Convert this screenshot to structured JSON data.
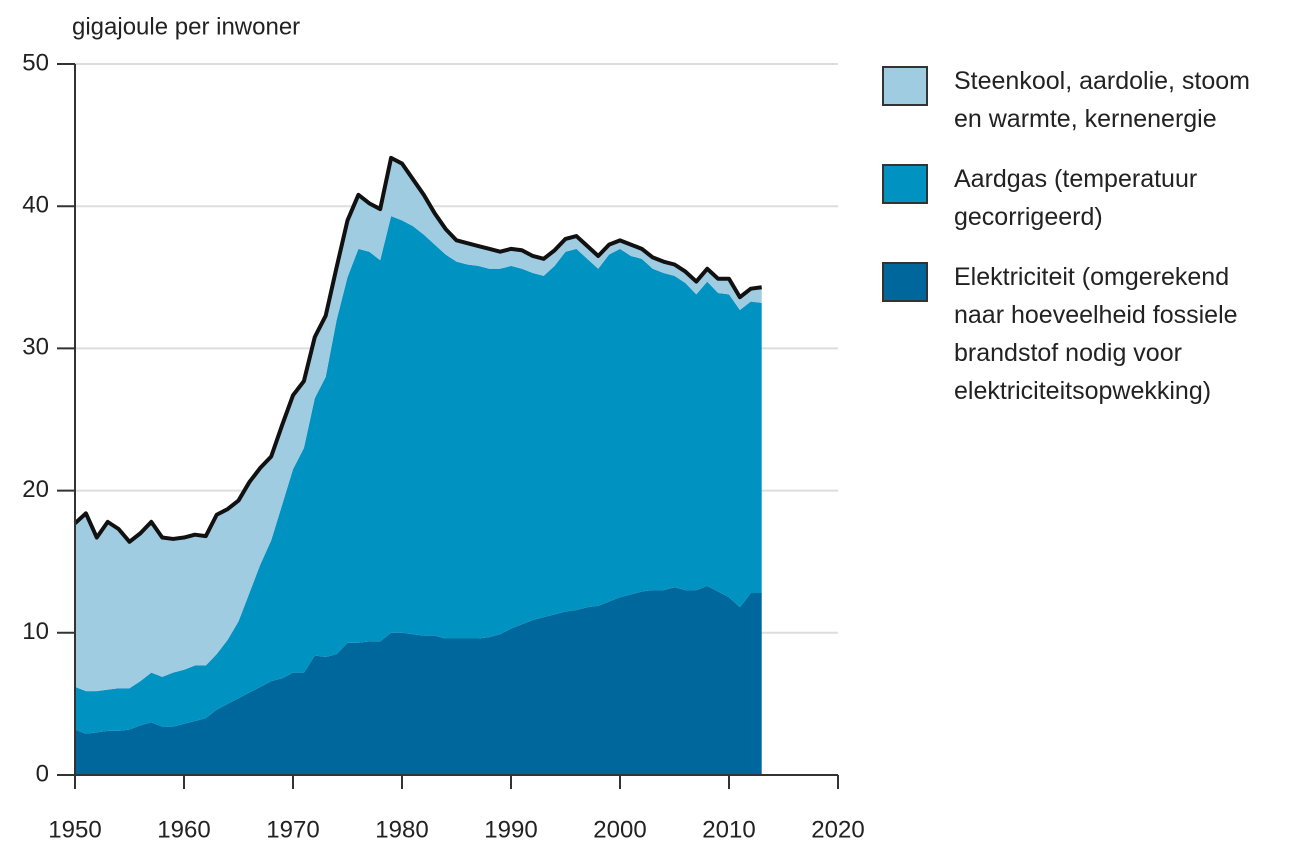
{
  "chart_data": {
    "type": "stacked_area",
    "ylabel": "gigajoule per inwoner",
    "x": [
      1950,
      1951,
      1952,
      1953,
      1954,
      1955,
      1956,
      1957,
      1958,
      1959,
      1960,
      1961,
      1962,
      1963,
      1964,
      1965,
      1966,
      1967,
      1968,
      1969,
      1970,
      1971,
      1972,
      1973,
      1974,
      1975,
      1976,
      1977,
      1978,
      1979,
      1980,
      1981,
      1982,
      1983,
      1984,
      1985,
      1986,
      1987,
      1988,
      1989,
      1990,
      1991,
      1992,
      1993,
      1994,
      1995,
      1996,
      1997,
      1998,
      1999,
      2000,
      2001,
      2002,
      2003,
      2004,
      2005,
      2006,
      2007,
      2008,
      2009,
      2010,
      2011,
      2012,
      2013
    ],
    "series": [
      {
        "name": "Elektriciteit (omgerekend naar hoeveelheid fossiele brandstof nodig voor elektriciteitsopwekking)",
        "color": "#00679c",
        "values": [
          3.2,
          2.9,
          3.0,
          3.1,
          3.1,
          3.2,
          3.5,
          3.7,
          3.4,
          3.4,
          3.6,
          3.8,
          4.0,
          4.6,
          5.0,
          5.4,
          5.8,
          6.2,
          6.6,
          6.8,
          7.2,
          7.2,
          8.4,
          8.3,
          8.5,
          9.3,
          9.3,
          9.4,
          9.4,
          10.0,
          10.0,
          9.9,
          9.8,
          9.8,
          9.6,
          9.6,
          9.6,
          9.6,
          9.7,
          9.9,
          10.3,
          10.6,
          10.9,
          11.1,
          11.3,
          11.5,
          11.6,
          11.8,
          11.9,
          12.2,
          12.5,
          12.7,
          12.9,
          13.0,
          13.0,
          13.2,
          13.0,
          13.0,
          13.3,
          12.9,
          12.5,
          11.8,
          12.8,
          12.8
        ]
      },
      {
        "name": "Aardgas (temperatuur gecorrigeerd)",
        "color": "#0093c2",
        "values": [
          3.0,
          3.0,
          2.9,
          2.9,
          3.0,
          2.9,
          3.1,
          3.5,
          3.5,
          3.8,
          3.8,
          3.9,
          3.7,
          3.9,
          4.5,
          5.4,
          7.0,
          8.6,
          9.9,
          12.2,
          14.3,
          15.8,
          18.1,
          19.7,
          23.5,
          25.7,
          27.7,
          27.4,
          26.8,
          29.3,
          29.0,
          28.7,
          28.2,
          27.5,
          27.0,
          26.5,
          26.3,
          26.2,
          25.9,
          25.7,
          25.5,
          25.0,
          24.4,
          24.0,
          24.5,
          25.3,
          25.4,
          24.5,
          23.7,
          24.4,
          24.5,
          23.8,
          23.4,
          22.6,
          22.3,
          21.9,
          21.6,
          20.8,
          21.4,
          21.0,
          21.3,
          20.9,
          20.5,
          20.4
        ]
      },
      {
        "name": "Steenkool, aardolie, stoom en warmte, kernenergie",
        "color": "#a0cce2",
        "values": [
          11.5,
          12.5,
          10.8,
          11.8,
          11.2,
          10.3,
          10.4,
          10.6,
          9.8,
          9.4,
          9.3,
          9.2,
          9.1,
          9.8,
          9.2,
          8.5,
          7.8,
          6.8,
          5.9,
          5.6,
          5.2,
          4.7,
          4.3,
          4.3,
          3.7,
          4.0,
          3.8,
          3.4,
          3.6,
          4.1,
          4.0,
          3.3,
          2.8,
          2.2,
          1.8,
          1.5,
          1.5,
          1.4,
          1.4,
          1.2,
          1.2,
          1.3,
          1.2,
          1.2,
          1.1,
          0.9,
          0.9,
          0.9,
          0.9,
          0.7,
          0.6,
          0.8,
          0.7,
          0.8,
          0.8,
          0.8,
          0.8,
          0.9,
          0.9,
          1.0,
          1.1,
          0.9,
          0.9,
          1.1
        ]
      }
    ],
    "xlim": [
      1950,
      2020
    ],
    "xticks": [
      1950,
      1960,
      1970,
      1980,
      1990,
      2000,
      2010,
      2020
    ],
    "ylim": [
      0,
      50
    ],
    "yticks": [
      0,
      10,
      20,
      30,
      40,
      50
    ],
    "grid": true,
    "legend": "right"
  }
}
